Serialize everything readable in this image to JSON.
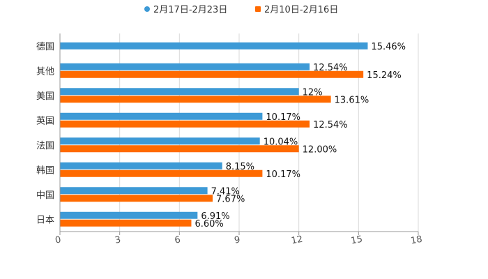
{
  "chart_data": {
    "type": "bar",
    "orientation": "horizontal",
    "title": "",
    "xlabel": "",
    "ylabel": "",
    "xlim": [
      0,
      18
    ],
    "xticks": [
      "0",
      "3",
      "6",
      "9",
      "12",
      "15",
      "18"
    ],
    "grid": true,
    "legend_position": "top-center",
    "categories": [
      "德国",
      "其他",
      "美国",
      "英国",
      "法国",
      "韩国",
      "中国",
      "日本"
    ],
    "series": [
      {
        "name": "2月17日-2月23日",
        "color": "#3d9ad6",
        "values": [
          15.46,
          12.54,
          12,
          10.17,
          10.04,
          8.15,
          7.41,
          6.91
        ],
        "labels": [
          "15.46%",
          "12.54%",
          "12%",
          "10.17%",
          "10.04%",
          "8.15%",
          "7.41%",
          "6.91%"
        ]
      },
      {
        "name": "2月10日-2月16日",
        "color": "#ff6a00",
        "values": [
          null,
          15.24,
          13.61,
          12.54,
          12.0,
          10.17,
          7.67,
          6.6
        ],
        "labels": [
          null,
          "15.24%",
          "13.61%",
          "12.54%",
          "12.00%",
          "10.17%",
          "7.67%",
          "6.60%"
        ]
      }
    ]
  }
}
